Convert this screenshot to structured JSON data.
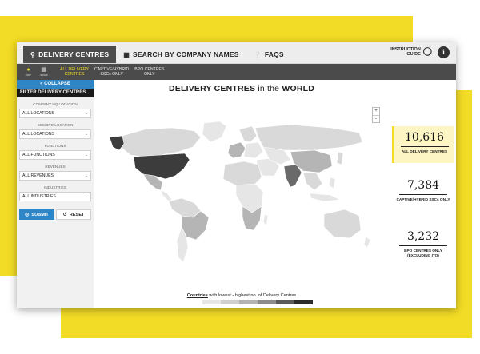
{
  "topnav": {
    "tabs": [
      {
        "label": "DELIVERY CENTRES",
        "icon": "map-pin-icon",
        "active": true
      },
      {
        "label": "SEARCH BY COMPANY NAMES",
        "icon": "building-icon",
        "active": false
      },
      {
        "label": "FAQS",
        "icon": "question-icon",
        "active": false
      }
    ],
    "instruction_line1": "INSTRUCTION",
    "instruction_line2": "GUIDE",
    "info_label": "i"
  },
  "subnav": {
    "view_map": "MAP",
    "view_table": "TABLE",
    "filters": [
      {
        "line1": "ALL DELIVERY",
        "line2": "CENTRES",
        "active": true
      },
      {
        "line1": "CAPTIVE/HYBRID",
        "line2": "SSCs ONLY",
        "active": false
      },
      {
        "line1": "BPO CENTRES",
        "line2": "ONLY",
        "active": false
      }
    ]
  },
  "sidebar": {
    "collapse_label": "« COLLAPSE",
    "title": "FILTER DELIVERY CENTRES",
    "filters": [
      {
        "label": "COMPANY HQ LOCATION",
        "value": "ALL LOCATIONS"
      },
      {
        "label": "SSC/BPO LOCATION",
        "value": "ALL LOCATIONS"
      },
      {
        "label": "FUNCTIONS",
        "value": "ALL FUNCTIONS"
      },
      {
        "label": "REVENUES",
        "value": "ALL REVENUES"
      },
      {
        "label": "INDUSTRIES",
        "value": "ALL INDUSTRIES"
      }
    ],
    "submit_label": "SUBMIT",
    "reset_label": "RESET"
  },
  "main": {
    "title_part1": "DELIVERY CENTRES",
    "title_part2": " in the ",
    "title_part3": "WORLD",
    "zoom_in": "+",
    "zoom_out": "-",
    "legend_underlined": "Countries",
    "legend_rest": " with lowest - highest no. of Delivery Centres",
    "legend_colors": [
      "#e6e6e6",
      "#cfcfcf",
      "#b3b3b3",
      "#8c8c8c",
      "#5a5a5a",
      "#2b2b2b"
    ],
    "colors": {
      "land_default": "#d9d9d9",
      "land_light": "#e6e6e6",
      "land_mid": "#b5b5b5",
      "land_dark": "#6a6a6a",
      "land_darkest": "#3c3c3c"
    }
  },
  "stats": [
    {
      "value": "10,616",
      "caption": "ALL DELIVERY CENTRES",
      "highlight": true
    },
    {
      "value": "7,384",
      "caption": "CAPTIVE/HYBRID SSCs ONLY",
      "highlight": false
    },
    {
      "value": "3,232",
      "caption": "BPO CENTRES ONLY (EXCLUDING ITO)",
      "highlight": false
    }
  ],
  "colors": {
    "accent_yellow": "#f3dc25",
    "accent_blue": "#2f86c6",
    "nav_dark": "#4b4b4b"
  }
}
